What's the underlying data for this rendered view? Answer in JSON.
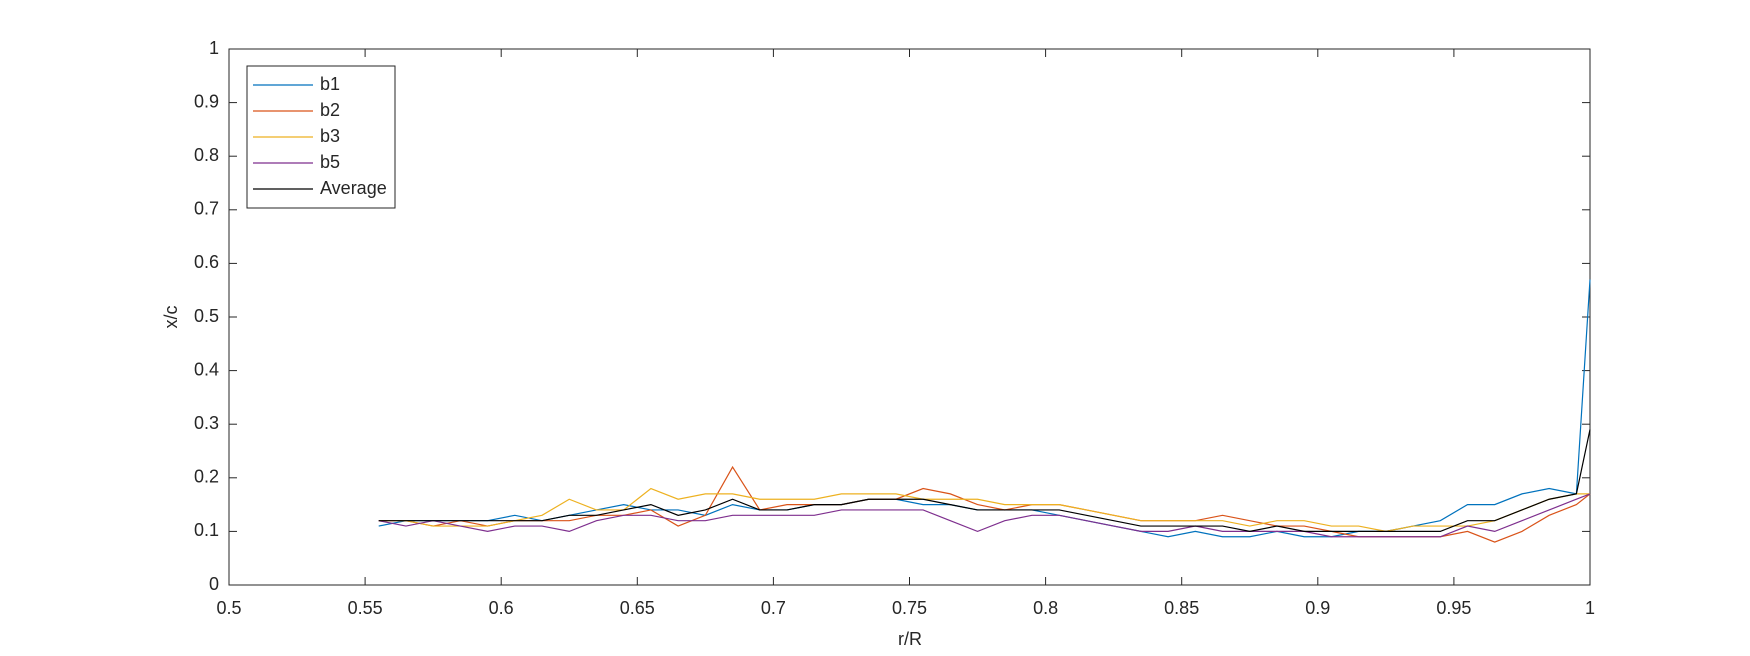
{
  "chart_data": {
    "type": "line",
    "xlabel": "r/R",
    "ylabel": "x/c",
    "x": [
      0.555,
      0.565,
      0.575,
      0.585,
      0.595,
      0.605,
      0.615,
      0.625,
      0.635,
      0.645,
      0.655,
      0.665,
      0.675,
      0.685,
      0.695,
      0.705,
      0.715,
      0.725,
      0.735,
      0.745,
      0.755,
      0.765,
      0.775,
      0.785,
      0.795,
      0.805,
      0.815,
      0.825,
      0.835,
      0.845,
      0.855,
      0.865,
      0.875,
      0.885,
      0.895,
      0.905,
      0.915,
      0.925,
      0.935,
      0.945,
      0.955,
      0.965,
      0.975,
      0.985,
      0.995,
      1
    ],
    "series": [
      {
        "name": "b1",
        "color": "#0072BD",
        "values": [
          0.11,
          0.12,
          0.12,
          0.12,
          0.12,
          0.13,
          0.12,
          0.13,
          0.14,
          0.15,
          0.14,
          0.14,
          0.13,
          0.15,
          0.14,
          0.14,
          0.15,
          0.15,
          0.16,
          0.16,
          0.15,
          0.15,
          0.14,
          0.14,
          0.14,
          0.13,
          0.12,
          0.11,
          0.1,
          0.09,
          0.1,
          0.09,
          0.09,
          0.1,
          0.09,
          0.09,
          0.1,
          0.1,
          0.11,
          0.12,
          0.15,
          0.15,
          0.17,
          0.18,
          0.17,
          0.57
        ]
      },
      {
        "name": "b2",
        "color": "#D95319",
        "values": [
          0.12,
          0.12,
          0.11,
          0.12,
          0.11,
          0.12,
          0.12,
          0.12,
          0.13,
          0.13,
          0.14,
          0.11,
          0.13,
          0.22,
          0.14,
          0.15,
          0.15,
          0.15,
          0.16,
          0.16,
          0.18,
          0.17,
          0.15,
          0.14,
          0.15,
          0.15,
          0.14,
          0.13,
          0.12,
          0.12,
          0.12,
          0.13,
          0.12,
          0.11,
          0.11,
          0.1,
          0.09,
          0.09,
          0.09,
          0.09,
          0.1,
          0.08,
          0.1,
          0.13,
          0.15,
          0.17
        ]
      },
      {
        "name": "b3",
        "color": "#EDB120",
        "values": [
          0.12,
          0.12,
          0.11,
          0.11,
          0.11,
          0.12,
          0.13,
          0.16,
          0.14,
          0.14,
          0.18,
          0.16,
          0.17,
          0.17,
          0.16,
          0.16,
          0.16,
          0.17,
          0.17,
          0.17,
          0.16,
          0.16,
          0.16,
          0.15,
          0.15,
          0.15,
          0.14,
          0.13,
          0.12,
          0.12,
          0.12,
          0.12,
          0.11,
          0.12,
          0.12,
          0.11,
          0.11,
          0.1,
          0.11,
          0.11,
          0.11,
          0.12,
          0.14,
          0.16,
          0.17,
          0.17
        ]
      },
      {
        "name": "b5",
        "color": "#7E2F8E",
        "values": [
          0.12,
          0.11,
          0.12,
          0.11,
          0.1,
          0.11,
          0.11,
          0.1,
          0.12,
          0.13,
          0.13,
          0.12,
          0.12,
          0.13,
          0.13,
          0.13,
          0.13,
          0.14,
          0.14,
          0.14,
          0.14,
          0.12,
          0.1,
          0.12,
          0.13,
          0.13,
          0.12,
          0.11,
          0.1,
          0.1,
          0.11,
          0.1,
          0.1,
          0.1,
          0.1,
          0.09,
          0.09,
          0.09,
          0.09,
          0.09,
          0.11,
          0.1,
          0.12,
          0.14,
          0.16,
          0.17
        ]
      },
      {
        "name": "Average",
        "color": "#000000",
        "values": [
          0.12,
          0.12,
          0.12,
          0.12,
          0.12,
          0.12,
          0.12,
          0.13,
          0.13,
          0.14,
          0.15,
          0.13,
          0.14,
          0.16,
          0.14,
          0.14,
          0.15,
          0.15,
          0.16,
          0.16,
          0.16,
          0.15,
          0.14,
          0.14,
          0.14,
          0.14,
          0.13,
          0.12,
          0.11,
          0.11,
          0.11,
          0.11,
          0.1,
          0.11,
          0.1,
          0.1,
          0.1,
          0.1,
          0.1,
          0.1,
          0.12,
          0.12,
          0.14,
          0.16,
          0.17,
          0.29
        ]
      }
    ],
    "xlim": [
      0.5,
      1
    ],
    "xticks": [
      0.5,
      0.55,
      0.6,
      0.65,
      0.7,
      0.75,
      0.8,
      0.85,
      0.9,
      0.95,
      1
    ],
    "ylim": [
      0,
      1
    ],
    "yticks": [
      0,
      0.1,
      0.2,
      0.3,
      0.4,
      0.5,
      0.6,
      0.7,
      0.8,
      0.9,
      1
    ],
    "grid": false,
    "legend": "upper left"
  }
}
